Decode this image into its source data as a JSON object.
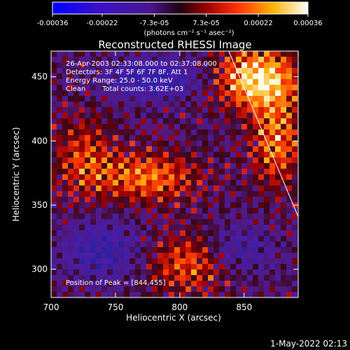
{
  "chart_data": {
    "type": "heatmap",
    "title": "Reconstructed RHESSI Image",
    "xlabel": "Heliocentric X (arcsec)",
    "ylabel": "Heliocentric Y (arcsec)",
    "xlim": [
      700,
      892
    ],
    "ylim": [
      278,
      470
    ],
    "xticks": [
      700,
      750,
      800,
      850
    ],
    "yticks": [
      300,
      350,
      400,
      450
    ],
    "colorbar": {
      "range": [
        -0.00036,
        0.00036
      ],
      "tick_values": [
        -0.00036,
        -0.00022,
        -7.3e-05,
        7.3e-05,
        0.00022,
        0.00036
      ],
      "tick_labels": [
        "-0.00036",
        "-0.00022",
        "-7.3e-05",
        "7.3e-05",
        "0.00022",
        "0.00036"
      ],
      "unit_label": "(photons cm⁻² s⁻¹ asec⁻²)"
    },
    "annotations": {
      "time_range": "26-Apr-2003 02:33:08.000 to 02:37:08.000",
      "detectors": "Detectors: 3F 4F 5F 6F 7F 8F, Att 1",
      "energy": "Energy Range: 25.0 - 50.0 keV",
      "method": "Clean",
      "counts": "Total counts: 3.62E+03",
      "peak": "Position of Peak = [844,455]"
    },
    "limb_line": [
      [
        838,
        470
      ],
      [
        892,
        341
      ]
    ],
    "timestamp": "1-May-2022 02:13",
    "colors": {
      "background": "#000000",
      "text": "#ffffff"
    }
  }
}
